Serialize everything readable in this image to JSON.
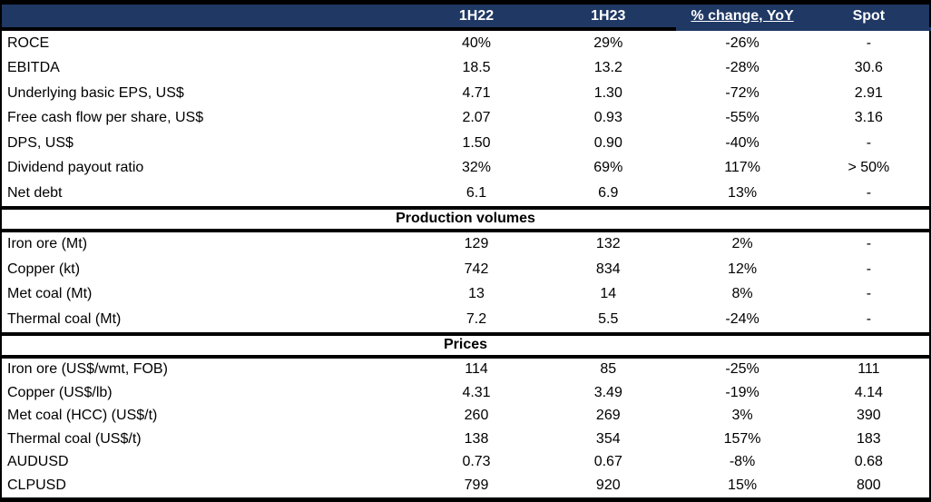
{
  "colors": {
    "header_bg": "#1F3864",
    "header_text": "#FFFFFF",
    "border": "#000000",
    "row_bg": "#FFFFFF",
    "text": "#000000"
  },
  "chart_data": {
    "type": "table",
    "columns": [
      "",
      "1H22",
      "1H23",
      "% change, YoY",
      "Spot"
    ],
    "underlined_column_index": 3,
    "sections": [
      {
        "title": "",
        "rows": [
          [
            "ROCE",
            "40%",
            "29%",
            "-26%",
            "-"
          ],
          [
            "EBITDA",
            "18.5",
            "13.2",
            "-28%",
            "30.6"
          ],
          [
            "Underlying basic EPS, US$",
            "4.71",
            "1.30",
            "-72%",
            "2.91"
          ],
          [
            "Free cash flow per share, US$",
            "2.07",
            "0.93",
            "-55%",
            "3.16"
          ],
          [
            "DPS, US$",
            "1.50",
            "0.90",
            "-40%",
            "-"
          ],
          [
            "Dividend payout ratio",
            "32%",
            "69%",
            "117%",
            "> 50%"
          ],
          [
            "Net debt",
            "6.1",
            "6.9",
            "13%",
            "-"
          ]
        ]
      },
      {
        "title": "Production volumes",
        "rows": [
          [
            "Iron ore (Mt)",
            "129",
            "132",
            "2%",
            "-"
          ],
          [
            "Copper (kt)",
            "742",
            "834",
            "12%",
            "-"
          ],
          [
            "Met coal (Mt)",
            "13",
            "14",
            "8%",
            "-"
          ],
          [
            "Thermal coal (Mt)",
            "7.2",
            "5.5",
            "-24%",
            "-"
          ]
        ]
      },
      {
        "title": "Prices",
        "rows": [
          [
            "Iron ore (US$/wmt, FOB)",
            "114",
            "85",
            "-25%",
            "111"
          ],
          [
            "Copper (US$/lb)",
            "4.31",
            "3.49",
            "-19%",
            "4.14"
          ],
          [
            "Met coal (HCC) (US$/t)",
            "260",
            "269",
            "3%",
            "390"
          ],
          [
            "Thermal coal (US$/t)",
            "138",
            "354",
            "157%",
            "183"
          ],
          [
            "AUDUSD",
            "0.73",
            "0.67",
            "-8%",
            "0.68"
          ],
          [
            "CLPUSD",
            "799",
            "920",
            "15%",
            "800"
          ]
        ]
      }
    ]
  }
}
